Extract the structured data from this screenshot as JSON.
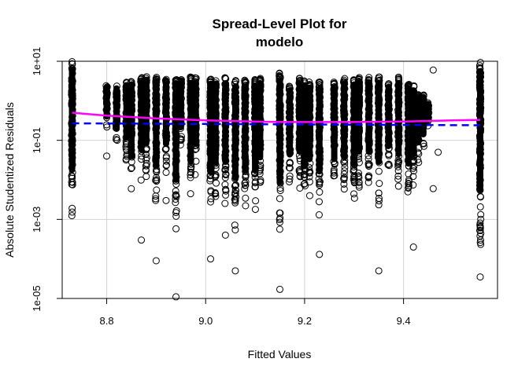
{
  "chart_data": {
    "type": "scatter",
    "title_line1": "Spread-Level Plot for",
    "title_line2": "modelo",
    "xlabel": "Fitted Values",
    "ylabel": "Absolute Studentized Residuals",
    "xlim": [
      8.71,
      9.59
    ],
    "ylim_log10": [
      -5.0,
      1.0
    ],
    "y_scale": "log",
    "grid": true,
    "x_ticks": [
      {
        "value": 8.8,
        "label": "8.8"
      },
      {
        "value": 9.0,
        "label": "9.0"
      },
      {
        "value": 9.2,
        "label": "9.2"
      },
      {
        "value": 9.4,
        "label": "9.4"
      }
    ],
    "y_ticks": [
      {
        "value": 10,
        "label": "1e+01"
      },
      {
        "value": 0.1,
        "label": "1e-01"
      },
      {
        "value": 0.001,
        "label": "1e-03"
      },
      {
        "value": 1e-05,
        "label": "1e-05"
      }
    ],
    "columns": [
      {
        "x": 8.73,
        "lo": 0.0006,
        "hi": 10
      },
      {
        "x": 8.8,
        "lo": 0.15,
        "hi": 2.5
      },
      {
        "x": 8.82,
        "lo": 0.05,
        "hi": 2.5
      },
      {
        "x": 8.84,
        "lo": 0.02,
        "hi": 3.0
      },
      {
        "x": 8.85,
        "lo": 0.004,
        "hi": 3.5
      },
      {
        "x": 8.87,
        "lo": 0.006,
        "hi": 4.0
      },
      {
        "x": 8.88,
        "lo": 0.01,
        "hi": 4.5
      },
      {
        "x": 8.9,
        "lo": 0.0015,
        "hi": 4.0
      },
      {
        "x": 8.92,
        "lo": 0.01,
        "hi": 4.0
      },
      {
        "x": 8.94,
        "lo": 0.0004,
        "hi": 4.0
      },
      {
        "x": 8.95,
        "lo": 0.05,
        "hi": 4.0
      },
      {
        "x": 8.97,
        "lo": 0.002,
        "hi": 4.0
      },
      {
        "x": 8.98,
        "lo": 0.01,
        "hi": 4.0
      },
      {
        "x": 9.01,
        "lo": 0.0008,
        "hi": 4.0
      },
      {
        "x": 9.02,
        "lo": 0.002,
        "hi": 3.5
      },
      {
        "x": 9.04,
        "lo": 0.002,
        "hi": 4.0
      },
      {
        "x": 9.06,
        "lo": 0.0005,
        "hi": 3.5
      },
      {
        "x": 9.08,
        "lo": 0.001,
        "hi": 3.5
      },
      {
        "x": 9.1,
        "lo": 0.001,
        "hi": 3.5
      },
      {
        "x": 9.11,
        "lo": 0.003,
        "hi": 4.0
      },
      {
        "x": 9.15,
        "lo": 0.0003,
        "hi": 5.0
      },
      {
        "x": 9.17,
        "lo": 0.005,
        "hi": 2.5
      },
      {
        "x": 9.19,
        "lo": 0.005,
        "hi": 4.0
      },
      {
        "x": 9.2,
        "lo": 0.0015,
        "hi": 3.5
      },
      {
        "x": 9.21,
        "lo": 0.003,
        "hi": 3.0
      },
      {
        "x": 9.23,
        "lo": 0.001,
        "hi": 3.0
      },
      {
        "x": 9.26,
        "lo": 0.003,
        "hi": 3.0
      },
      {
        "x": 9.28,
        "lo": 0.003,
        "hi": 4.0
      },
      {
        "x": 9.3,
        "lo": 0.002,
        "hi": 3.5
      },
      {
        "x": 9.31,
        "lo": 0.005,
        "hi": 4.0
      },
      {
        "x": 9.33,
        "lo": 0.005,
        "hi": 4.0
      },
      {
        "x": 9.35,
        "lo": 0.002,
        "hi": 4.0
      },
      {
        "x": 9.37,
        "lo": 0.01,
        "hi": 3.0
      },
      {
        "x": 9.39,
        "lo": 0.004,
        "hi": 4.0
      },
      {
        "x": 9.41,
        "lo": 0.002,
        "hi": 3.0
      },
      {
        "x": 9.42,
        "lo": 0.005,
        "hi": 2.5
      },
      {
        "x": 9.43,
        "lo": 0.02,
        "hi": 1.5
      },
      {
        "x": 9.44,
        "lo": 0.04,
        "hi": 1.5
      },
      {
        "x": 9.45,
        "lo": 0.2,
        "hi": 0.9
      },
      {
        "x": 9.555,
        "lo": 0.0001,
        "hi": 10
      }
    ],
    "outliers": [
      {
        "x": 8.8,
        "y": 0.04
      },
      {
        "x": 8.87,
        "y": 0.0003
      },
      {
        "x": 8.9,
        "y": 9e-05
      },
      {
        "x": 8.94,
        "y": 1.1e-05
      },
      {
        "x": 8.92,
        "y": 0.003
      },
      {
        "x": 9.01,
        "y": 0.0001
      },
      {
        "x": 9.04,
        "y": 0.0004
      },
      {
        "x": 9.06,
        "y": 5e-05
      },
      {
        "x": 9.15,
        "y": 1.7e-05
      },
      {
        "x": 9.23,
        "y": 0.00013
      },
      {
        "x": 9.35,
        "y": 5e-05
      },
      {
        "x": 9.42,
        "y": 0.0002
      },
      {
        "x": 9.46,
        "y": 0.006
      },
      {
        "x": 9.46,
        "y": 6.0
      },
      {
        "x": 9.555,
        "y": 3.5e-05
      },
      {
        "x": 9.47,
        "y": 0.05
      }
    ],
    "series": [
      {
        "kind": "reference-line",
        "color": "#0000ff",
        "dashed": true,
        "x": [
          8.73,
          9.555
        ],
        "y": [
          0.27,
          0.24
        ]
      },
      {
        "kind": "smooth",
        "color": "#ff00ff",
        "x": [
          8.73,
          8.8,
          8.9,
          9.0,
          9.1,
          9.15,
          9.2,
          9.3,
          9.4,
          9.5,
          9.555
        ],
        "y": [
          0.5,
          0.42,
          0.36,
          0.32,
          0.3,
          0.29,
          0.29,
          0.29,
          0.3,
          0.32,
          0.33
        ]
      }
    ],
    "colors": {
      "points": "#000000",
      "grid": "#d3d3d3",
      "reference": "#0000ff",
      "smooth": "#ff00ff"
    }
  }
}
